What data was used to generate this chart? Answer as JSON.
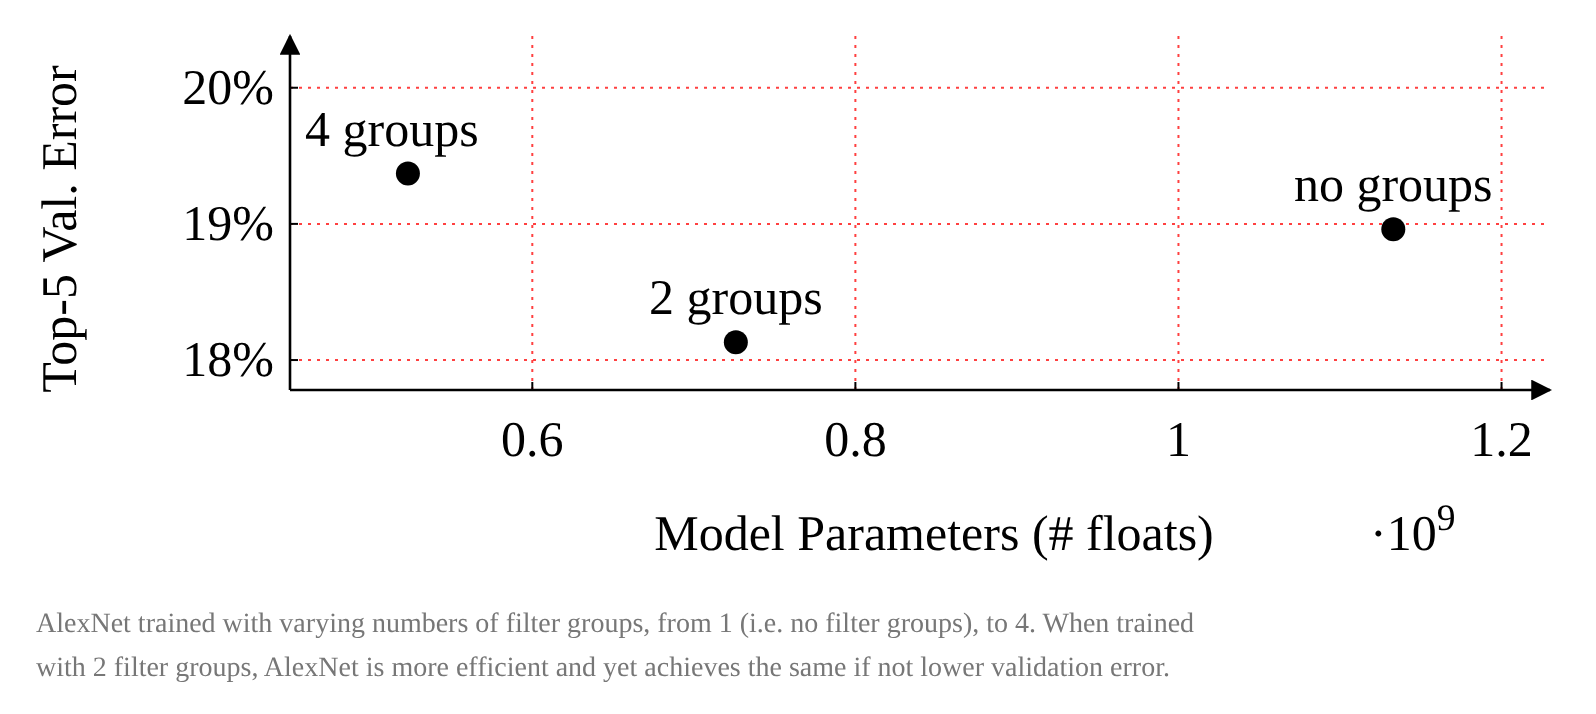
{
  "chart_data": {
    "type": "scatter",
    "xlabel": "Model Parameters (# floats)",
    "ylabel": "Top-5 Val. Error",
    "xlim": [
      0.45,
      1.23
    ],
    "xticks": [
      0.6,
      0.8,
      1,
      1.2
    ],
    "ylim": [
      17.78,
      20.38
    ],
    "yticks": [
      {
        "value": 18,
        "label": "18%"
      },
      {
        "value": 19,
        "label": "19%"
      },
      {
        "value": 20,
        "label": "20%"
      }
    ],
    "grid": true,
    "marker": "circle",
    "series": [
      {
        "name": "4 groups",
        "color": "#000000",
        "x": [
          0.523
        ],
        "values": [
          19.37
        ]
      },
      {
        "name": "2 groups",
        "color": "#000000",
        "x": [
          0.726
        ],
        "values": [
          18.13
        ]
      },
      {
        "name": "no groups",
        "color": "#000000",
        "x": [
          1.133
        ],
        "values": [
          18.96
        ]
      }
    ],
    "annotations": [
      "·10$^{9}$",
      "AlexNet trained with varying numbers of filter groups, from 1 (i.e. no filter groups), to 4. When trained with 2 filter groups, AlexNet is more efficient and yet achieves the same if not lower validation error."
    ]
  }
}
